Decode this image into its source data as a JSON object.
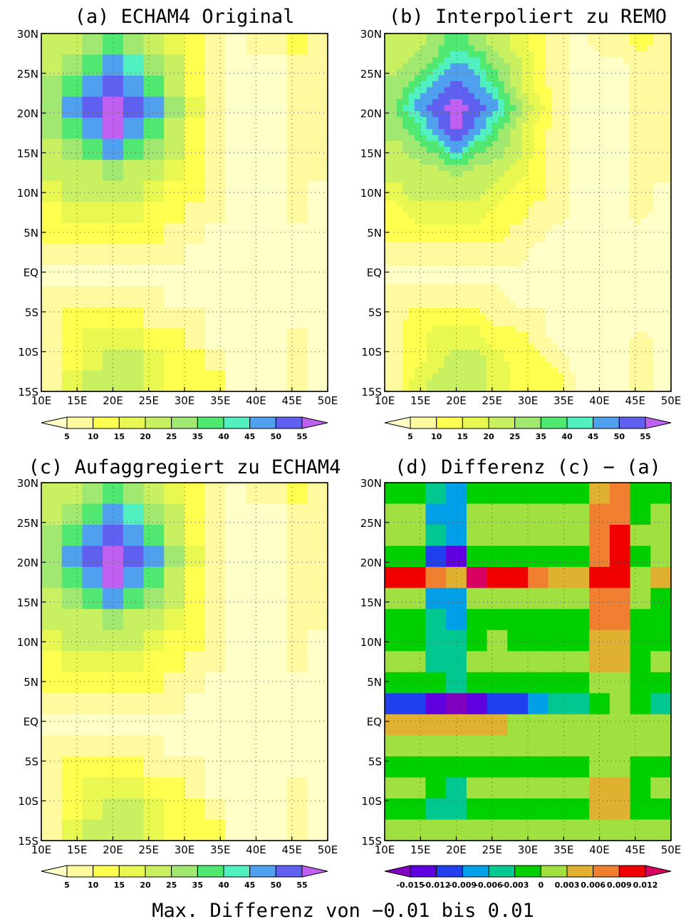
{
  "footer": "Max. Differenz von −0.01 bis 0.01",
  "colors": {
    "field": [
      "#ffffc8",
      "#fffaa0",
      "#ffff50",
      "#e8f850",
      "#c8f060",
      "#a0e870",
      "#50e870",
      "#50f0c0",
      "#50a0f0",
      "#6060f0",
      "#c060f0"
    ],
    "diff": [
      "#8000c0",
      "#6000e0",
      "#2040f0",
      "#00a0e8",
      "#00c890",
      "#00d000",
      "#a0e040",
      "#e0b030",
      "#f08030",
      "#f00000",
      "#d80060"
    ]
  },
  "panels": [
    {
      "key": "a",
      "title": "(a) ECHAM4 Original"
    },
    {
      "key": "b",
      "title": "(b) Interpoliert zu REMO"
    },
    {
      "key": "c",
      "title": "(c) Aufaggregiert zu ECHAM4"
    },
    {
      "key": "d",
      "title": "(d) Differenz (c) − (a)"
    }
  ],
  "chart_data": [
    {
      "type": "heatmap",
      "title": "(a) ECHAM4 Original",
      "xticks": [
        "10E",
        "15E",
        "20E",
        "25E",
        "30E",
        "35E",
        "40E",
        "45E",
        "50E"
      ],
      "yticks": [
        "30N",
        "25N",
        "20N",
        "15N",
        "10N",
        "5N",
        "EQ",
        "5S",
        "10S",
        "15S"
      ],
      "xlim": [
        10,
        50
      ],
      "ylim": [
        -15,
        30
      ],
      "colorbar": {
        "ticks": [
          "5",
          "10",
          "15",
          "20",
          "25",
          "35",
          "40",
          "45",
          "50",
          "55"
        ]
      },
      "grid_rows": [
        [
          4,
          4,
          5,
          6,
          5,
          4,
          3,
          2,
          1,
          0,
          1,
          1,
          2,
          1
        ],
        [
          4,
          5,
          6,
          8,
          7,
          5,
          4,
          2,
          1,
          0,
          0,
          0,
          1,
          1
        ],
        [
          5,
          6,
          8,
          9,
          8,
          6,
          4,
          2,
          1,
          0,
          0,
          0,
          1,
          1
        ],
        [
          5,
          8,
          9,
          10,
          9,
          8,
          5,
          3,
          1,
          0,
          0,
          0,
          1,
          1
        ],
        [
          5,
          6,
          8,
          10,
          8,
          6,
          4,
          2,
          1,
          0,
          0,
          0,
          1,
          1
        ],
        [
          4,
          5,
          6,
          8,
          6,
          5,
          4,
          2,
          1,
          0,
          0,
          0,
          1,
          1
        ],
        [
          4,
          4,
          4,
          5,
          4,
          4,
          3,
          2,
          1,
          0,
          0,
          0,
          1,
          1
        ],
        [
          3,
          4,
          4,
          4,
          4,
          3,
          2,
          2,
          1,
          0,
          0,
          0,
          1,
          0
        ],
        [
          2,
          3,
          3,
          3,
          3,
          2,
          2,
          1,
          1,
          0,
          0,
          0,
          1,
          0
        ],
        [
          2,
          2,
          2,
          2,
          2,
          2,
          1,
          1,
          0,
          0,
          0,
          0,
          0,
          0
        ],
        [
          1,
          1,
          1,
          1,
          1,
          1,
          1,
          0,
          0,
          0,
          0,
          0,
          0,
          0
        ],
        [
          0,
          0,
          0,
          0,
          0,
          0,
          0,
          0,
          0,
          0,
          0,
          0,
          0,
          0
        ],
        [
          1,
          1,
          1,
          1,
          1,
          1,
          0,
          0,
          0,
          0,
          0,
          0,
          0,
          0
        ],
        [
          1,
          2,
          2,
          2,
          2,
          1,
          1,
          1,
          0,
          0,
          0,
          0,
          0,
          0
        ],
        [
          1,
          2,
          3,
          3,
          3,
          2,
          2,
          1,
          0,
          0,
          0,
          0,
          1,
          0
        ],
        [
          1,
          2,
          3,
          4,
          4,
          3,
          2,
          2,
          1,
          0,
          0,
          0,
          1,
          0
        ],
        [
          1,
          3,
          4,
          4,
          4,
          3,
          2,
          2,
          2,
          0,
          0,
          0,
          1,
          0
        ]
      ]
    },
    {
      "type": "heatmap",
      "title": "(b) Interpoliert zu REMO",
      "xticks": [
        "10E",
        "15E",
        "20E",
        "25E",
        "30E",
        "35E",
        "40E",
        "45E",
        "50E"
      ],
      "yticks": [
        "30N",
        "25N",
        "20N",
        "15N",
        "10N",
        "5N",
        "EQ",
        "5S",
        "10S",
        "15S"
      ],
      "xlim": [
        10,
        50
      ],
      "ylim": [
        -15,
        30
      ],
      "colorbar": {
        "ticks": [
          "5",
          "10",
          "15",
          "20",
          "25",
          "35",
          "40",
          "45",
          "50",
          "55"
        ]
      }
    },
    {
      "type": "heatmap",
      "title": "(c) Aufaggregiert zu ECHAM4",
      "xticks": [
        "10E",
        "15E",
        "20E",
        "25E",
        "30E",
        "35E",
        "40E",
        "45E",
        "50E"
      ],
      "yticks": [
        "30N",
        "25N",
        "20N",
        "15N",
        "10N",
        "5N",
        "EQ",
        "5S",
        "10S",
        "15S"
      ],
      "xlim": [
        10,
        50
      ],
      "ylim": [
        -15,
        30
      ],
      "colorbar": {
        "ticks": [
          "5",
          "10",
          "15",
          "20",
          "25",
          "35",
          "40",
          "45",
          "50",
          "55"
        ]
      }
    },
    {
      "type": "heatmap",
      "title": "(d) Differenz (c) − (a)",
      "xticks": [
        "10E",
        "15E",
        "20E",
        "25E",
        "30E",
        "35E",
        "40E",
        "45E",
        "50E"
      ],
      "yticks": [
        "30N",
        "25N",
        "20N",
        "15N",
        "10N",
        "5N",
        "EQ",
        "5S",
        "10S",
        "15S"
      ],
      "xlim": [
        10,
        50
      ],
      "ylim": [
        -15,
        30
      ],
      "colorbar": {
        "ticks": [
          "-0.015",
          "-0.012",
          "-0.009",
          "-0.006",
          "-0.003",
          "0",
          "0.003",
          "0.006",
          "0.009",
          "0.012"
        ]
      },
      "grid_rows": [
        [
          5,
          5,
          4,
          3,
          5,
          5,
          5,
          5,
          5,
          5,
          7,
          8,
          5,
          5
        ],
        [
          6,
          6,
          3,
          3,
          6,
          6,
          6,
          6,
          6,
          6,
          8,
          8,
          5,
          6
        ],
        [
          6,
          6,
          4,
          3,
          6,
          6,
          6,
          6,
          6,
          6,
          8,
          9,
          6,
          6
        ],
        [
          5,
          5,
          2,
          1,
          5,
          5,
          5,
          5,
          5,
          5,
          8,
          9,
          5,
          6
        ],
        [
          9,
          9,
          8,
          7,
          10,
          9,
          9,
          8,
          7,
          7,
          9,
          9,
          6,
          7
        ],
        [
          6,
          6,
          3,
          3,
          6,
          6,
          6,
          6,
          6,
          6,
          8,
          8,
          6,
          5
        ],
        [
          5,
          5,
          4,
          3,
          5,
          5,
          5,
          5,
          5,
          5,
          8,
          8,
          5,
          5
        ],
        [
          5,
          5,
          4,
          4,
          5,
          6,
          5,
          5,
          5,
          5,
          7,
          7,
          5,
          5
        ],
        [
          6,
          6,
          4,
          4,
          6,
          6,
          6,
          6,
          6,
          6,
          7,
          7,
          5,
          6
        ],
        [
          5,
          5,
          5,
          4,
          5,
          5,
          5,
          5,
          5,
          5,
          6,
          6,
          5,
          5
        ],
        [
          2,
          2,
          1,
          0,
          1,
          2,
          2,
          3,
          4,
          4,
          5,
          6,
          5,
          4
        ],
        [
          7,
          7,
          7,
          7,
          7,
          7,
          6,
          6,
          6,
          6,
          6,
          6,
          6,
          6
        ],
        [
          6,
          6,
          6,
          6,
          6,
          6,
          6,
          6,
          6,
          6,
          6,
          6,
          6,
          6
        ],
        [
          5,
          5,
          5,
          5,
          5,
          5,
          5,
          5,
          5,
          5,
          6,
          6,
          5,
          5
        ],
        [
          6,
          6,
          5,
          4,
          6,
          6,
          6,
          6,
          6,
          6,
          7,
          7,
          5,
          6
        ],
        [
          5,
          5,
          4,
          4,
          5,
          5,
          5,
          5,
          5,
          5,
          7,
          7,
          5,
          5
        ],
        [
          6,
          6,
          6,
          6,
          6,
          6,
          6,
          6,
          6,
          6,
          6,
          6,
          6,
          6
        ]
      ]
    }
  ]
}
